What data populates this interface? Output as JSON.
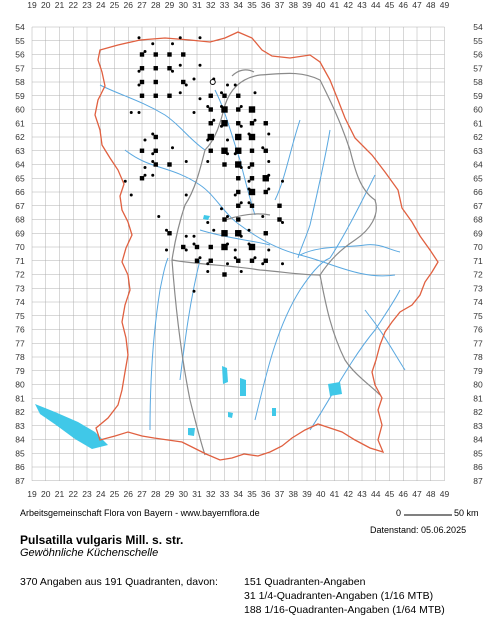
{
  "axes": {
    "x_labels": [
      "19",
      "20",
      "21",
      "22",
      "23",
      "24",
      "25",
      "26",
      "27",
      "28",
      "29",
      "30",
      "31",
      "32",
      "33",
      "34",
      "35",
      "36",
      "37",
      "38",
      "39",
      "40",
      "41",
      "42",
      "43",
      "44",
      "45",
      "46",
      "47",
      "48",
      "49"
    ],
    "y_labels": [
      "54",
      "55",
      "56",
      "57",
      "58",
      "59",
      "60",
      "61",
      "62",
      "63",
      "64",
      "65",
      "66",
      "67",
      "68",
      "69",
      "70",
      "71",
      "72",
      "73",
      "74",
      "75",
      "76",
      "77",
      "78",
      "79",
      "80",
      "81",
      "82",
      "83",
      "84",
      "85",
      "86",
      "87"
    ]
  },
  "colors": {
    "grid": "#b0b0b0",
    "state_border": "#e06040",
    "district_border": "#8a8a8a",
    "rivers": "#5aa8e0",
    "lakes": "#40c8e8",
    "points": "#000000"
  },
  "occurrences": {
    "quarter_quadrant_cells": [
      [
        33,
        60
      ],
      [
        35,
        60
      ],
      [
        33,
        61
      ],
      [
        34,
        62
      ],
      [
        35,
        62
      ],
      [
        32,
        62
      ],
      [
        33,
        63
      ],
      [
        34,
        63
      ],
      [
        36,
        65
      ],
      [
        35,
        66
      ],
      [
        33,
        69
      ],
      [
        34,
        69
      ],
      [
        35,
        70
      ],
      [
        33,
        70
      ],
      [
        34,
        64
      ]
    ],
    "sixteenth_quadrant_points": [
      [
        27,
        56
      ],
      [
        28,
        56
      ],
      [
        29,
        56
      ],
      [
        30,
        56
      ],
      [
        27,
        57
      ],
      [
        28,
        57
      ],
      [
        29,
        57
      ],
      [
        27,
        58
      ],
      [
        28,
        58
      ],
      [
        30,
        58
      ],
      [
        27,
        59
      ],
      [
        28,
        59
      ],
      [
        29,
        59
      ],
      [
        32,
        59
      ],
      [
        33,
        59
      ],
      [
        34,
        59
      ],
      [
        32,
        60
      ],
      [
        32,
        61
      ],
      [
        34,
        60
      ],
      [
        34,
        61
      ],
      [
        35,
        61
      ],
      [
        36,
        61
      ],
      [
        32,
        63
      ],
      [
        35,
        63
      ],
      [
        36,
        63
      ],
      [
        33,
        64
      ],
      [
        35,
        64
      ],
      [
        35,
        65
      ],
      [
        34,
        65
      ],
      [
        34,
        66
      ],
      [
        36,
        66
      ],
      [
        34,
        67
      ],
      [
        35,
        67
      ],
      [
        33,
        68
      ],
      [
        34,
        68
      ],
      [
        36,
        69
      ],
      [
        32,
        70
      ],
      [
        31,
        70
      ],
      [
        30,
        70
      ],
      [
        29,
        69
      ],
      [
        31,
        71
      ],
      [
        32,
        71
      ],
      [
        34,
        71
      ],
      [
        35,
        71
      ],
      [
        36,
        71
      ],
      [
        28,
        62
      ],
      [
        28,
        63
      ],
      [
        27,
        63
      ],
      [
        29,
        64
      ],
      [
        28,
        64
      ],
      [
        27,
        65
      ],
      [
        37,
        67
      ],
      [
        37,
        68
      ],
      [
        33,
        72
      ]
    ],
    "sixtyfourth_quadrant_points": [
      [
        27,
        55
      ],
      [
        27,
        56
      ],
      [
        28,
        55
      ],
      [
        29,
        55
      ],
      [
        30,
        55
      ],
      [
        31,
        55
      ],
      [
        27,
        57
      ],
      [
        29,
        57
      ],
      [
        30,
        57
      ],
      [
        31,
        57
      ],
      [
        27,
        58
      ],
      [
        30,
        58
      ],
      [
        31,
        58
      ],
      [
        32,
        58
      ],
      [
        27,
        60
      ],
      [
        26,
        60
      ],
      [
        33,
        60
      ],
      [
        34,
        60
      ],
      [
        31,
        60
      ],
      [
        31,
        59
      ],
      [
        30,
        59
      ],
      [
        32,
        61
      ],
      [
        33,
        61
      ],
      [
        34,
        61
      ],
      [
        35,
        62
      ],
      [
        36,
        62
      ],
      [
        32,
        62
      ],
      [
        33,
        62
      ],
      [
        36,
        63
      ],
      [
        36,
        64
      ],
      [
        35,
        64
      ],
      [
        34,
        64
      ],
      [
        32,
        64
      ],
      [
        36,
        65
      ],
      [
        35,
        65
      ],
      [
        37,
        65
      ],
      [
        35,
        66
      ],
      [
        36,
        66
      ],
      [
        34,
        66
      ],
      [
        30,
        66
      ],
      [
        35,
        67
      ],
      [
        34,
        67
      ],
      [
        33,
        67
      ],
      [
        37,
        68
      ],
      [
        36,
        68
      ],
      [
        33,
        68
      ],
      [
        32,
        68
      ],
      [
        34,
        69
      ],
      [
        35,
        69
      ],
      [
        32,
        69
      ],
      [
        31,
        69
      ],
      [
        30,
        69
      ],
      [
        29,
        69
      ],
      [
        28,
        68
      ],
      [
        29,
        70
      ],
      [
        30,
        70
      ],
      [
        31,
        70
      ],
      [
        33,
        70
      ],
      [
        34,
        70
      ],
      [
        36,
        70
      ],
      [
        35,
        70
      ],
      [
        31,
        71
      ],
      [
        32,
        71
      ],
      [
        33,
        71
      ],
      [
        34,
        71
      ],
      [
        35,
        71
      ],
      [
        36,
        71
      ],
      [
        37,
        71
      ],
      [
        32,
        72
      ],
      [
        34,
        72
      ],
      [
        31,
        73
      ],
      [
        27,
        62
      ],
      [
        28,
        62
      ],
      [
        29,
        63
      ],
      [
        28,
        63
      ],
      [
        27,
        64
      ],
      [
        28,
        65
      ],
      [
        27,
        65
      ],
      [
        26,
        65
      ],
      [
        26,
        66
      ],
      [
        28,
        64
      ],
      [
        30,
        64
      ],
      [
        34,
        63
      ],
      [
        33,
        63
      ],
      [
        33,
        59
      ],
      [
        35,
        59
      ],
      [
        34,
        58
      ],
      [
        33,
        58
      ],
      [
        32,
        60
      ],
      [
        35,
        61
      ]
    ]
  },
  "credit": {
    "left": "Arbeitsgemeinschaft Flora von Bayern - www.bayernflora.de",
    "scale_zero": "0",
    "scale_km": "50 km",
    "date": "Datenstand: 05.06.2025"
  },
  "species": {
    "scientific": "Pulsatilla vulgaris Mill. s. str.",
    "common": "Gewöhnliche Küchenschelle"
  },
  "summary": {
    "total": "370 Angaben aus 191 Quadranten, davon:",
    "line1": "151 Quadranten-Angaben",
    "line2": "31 1/4-Quadranten-Angaben (1/16 MTB)",
    "line3": "188 1/16-Quadranten-Angaben (1/64 MTB)"
  }
}
